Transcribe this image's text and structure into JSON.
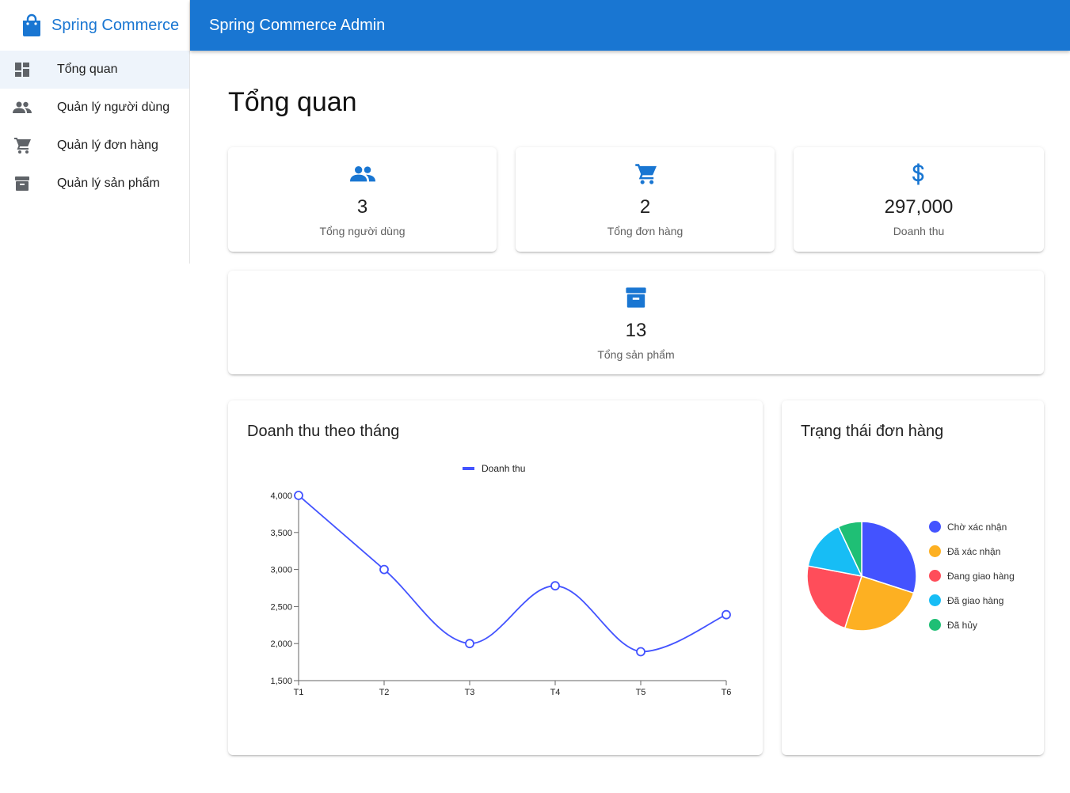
{
  "brand": {
    "name": "Spring Commerce"
  },
  "appbar": {
    "title": "Spring Commerce Admin"
  },
  "sidebar": {
    "items": [
      {
        "label": "Tổng quan",
        "icon": "dashboard-icon",
        "active": true
      },
      {
        "label": "Quản lý người dùng",
        "icon": "people-icon",
        "active": false
      },
      {
        "label": "Quản lý đơn hàng",
        "icon": "cart-icon",
        "active": false
      },
      {
        "label": "Quản lý sản phẩm",
        "icon": "archive-icon",
        "active": false
      }
    ]
  },
  "page": {
    "title": "Tổng quan"
  },
  "stats": [
    {
      "value": "3",
      "label": "Tổng người dùng",
      "icon": "people-icon"
    },
    {
      "value": "2",
      "label": "Tổng đơn hàng",
      "icon": "cart-icon"
    },
    {
      "value": "297,000",
      "label": "Doanh thu",
      "icon": "dollar-icon"
    },
    {
      "value": "13",
      "label": "Tổng sản phẩm",
      "icon": "archive-icon"
    }
  ],
  "colors": {
    "primary": "#1976d2",
    "line": "#4353ff"
  },
  "revenue_chart": {
    "title": "Doanh thu theo tháng"
  },
  "status_chart": {
    "title": "Trạng thái đơn hàng"
  },
  "chart_data": [
    {
      "type": "line",
      "title": "Doanh thu theo tháng",
      "categories": [
        "T1",
        "T2",
        "T3",
        "T4",
        "T5",
        "T6"
      ],
      "series": [
        {
          "name": "Doanh thu",
          "values": [
            4000,
            3000,
            2000,
            2780,
            1890,
            2390
          ],
          "color": "#4353ff"
        }
      ],
      "y_ticks": [
        "1,500",
        "2,000",
        "2,500",
        "3,000",
        "3,500",
        "4,000"
      ],
      "ylim": [
        1500,
        4000
      ],
      "legend": "top-center",
      "grid": false
    },
    {
      "type": "pie",
      "title": "Trạng thái đơn hàng",
      "slices": [
        {
          "name": "Chờ xác nhận",
          "value": 30,
          "color": "#4353ff"
        },
        {
          "name": "Đã xác nhận",
          "value": 25,
          "color": "#fdb022"
        },
        {
          "name": "Đang giao hàng",
          "value": 23,
          "color": "#ff4d5a"
        },
        {
          "name": "Đã giao hàng",
          "value": 15,
          "color": "#17bdf5"
        },
        {
          "name": "Đã hủy",
          "value": 7,
          "color": "#1fbf75"
        }
      ],
      "legend": "right"
    }
  ]
}
